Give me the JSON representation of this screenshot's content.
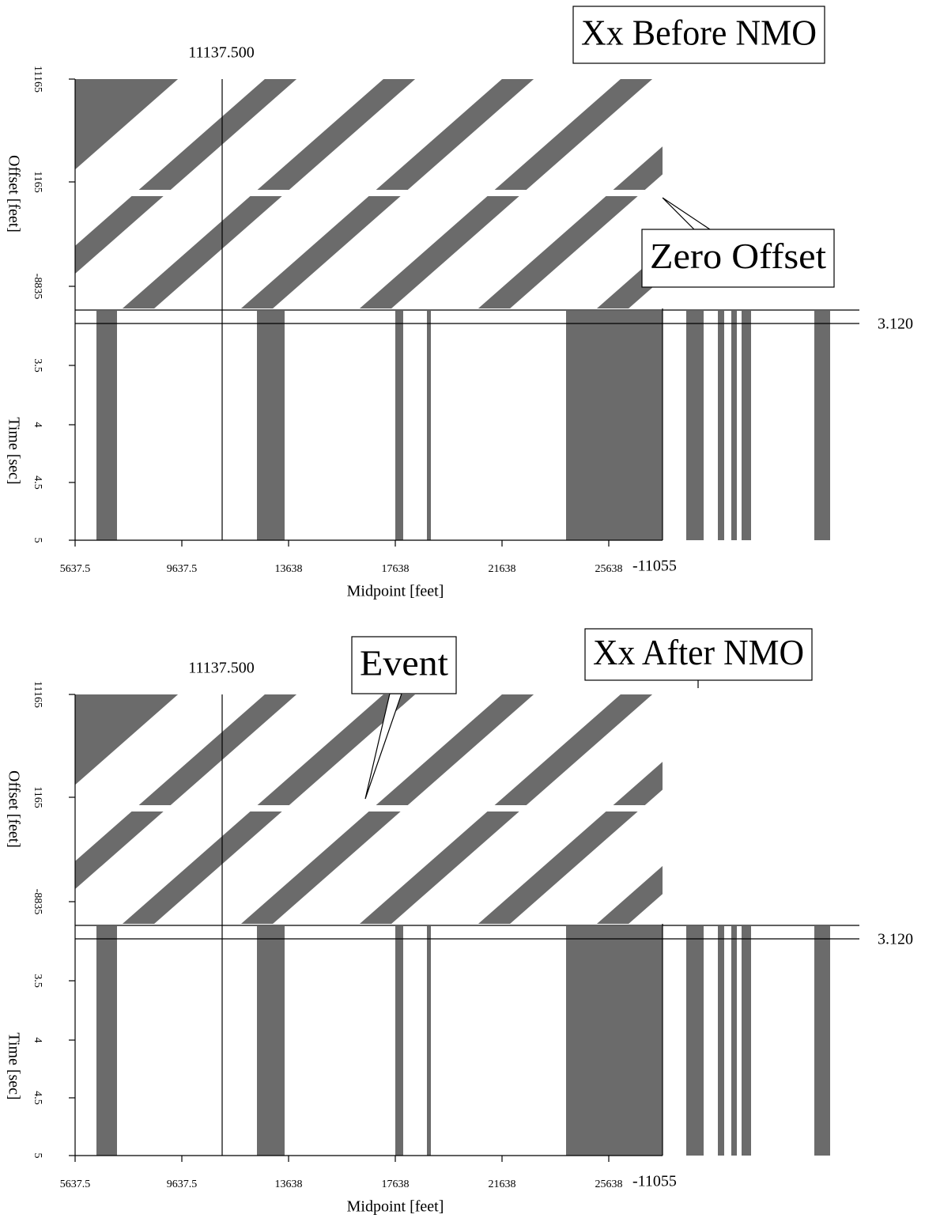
{
  "panels": [
    {
      "title": "Xx Before NMO",
      "annotation": "Zero Offset",
      "crosshair_midpoint": "11137.500",
      "crosshair_offset": "-11055",
      "crosshair_time": "3.120",
      "offset_ticks": [
        "11165",
        "1165",
        "-8835"
      ],
      "time_ticks": [
        "3.5",
        "4",
        "4.5",
        "5"
      ],
      "midpoint_ticks": [
        "5637.5",
        "9637.5",
        "13638",
        "17638",
        "21638",
        "25638"
      ],
      "offset_label": "Offset [feet]",
      "time_label": "Time [sec]",
      "midpoint_label": "Midpoint [feet]"
    },
    {
      "title": "Xx After NMO",
      "annotation": "Event",
      "crosshair_midpoint": "11137.500",
      "crosshair_offset": "-11055",
      "crosshair_time": "3.120",
      "offset_ticks": [
        "11165",
        "1165",
        "-8835"
      ],
      "time_ticks": [
        "3.5",
        "4",
        "4.5",
        "5"
      ],
      "midpoint_ticks": [
        "5637.5",
        "9637.5",
        "13638",
        "17638",
        "21638",
        "25638"
      ],
      "offset_label": "Offset [feet]",
      "time_label": "Time [sec]",
      "midpoint_label": "Midpoint [feet]"
    }
  ]
}
